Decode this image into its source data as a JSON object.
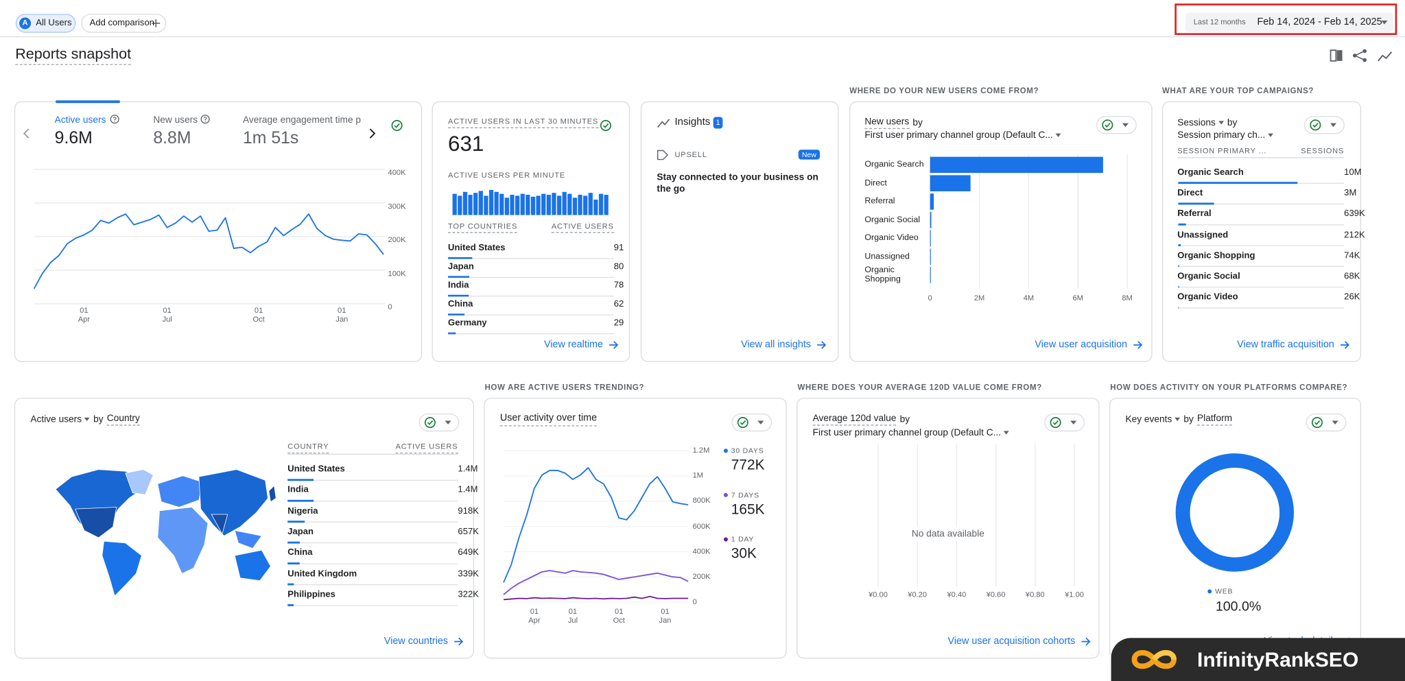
{
  "toolbar": {
    "segment_badge": "A",
    "segment": "All Users",
    "add_comparison": "Add comparison",
    "date_preset": "Last 12 months",
    "date_range": "Feb 14, 2024 - Feb 14, 2025"
  },
  "title": "Reports snapshot",
  "overview": {
    "metrics": [
      {
        "label": "Active users",
        "value": "9.6M"
      },
      {
        "label": "New users",
        "value": "8.8M"
      },
      {
        "label": "Average engagement time p",
        "value": "1m 51s"
      }
    ],
    "chart": {
      "type": "line",
      "color": "#1a73e8",
      "grid": true,
      "categories": [
        null,
        null,
        null,
        null,
        null,
        null,
        "01 Apr",
        null,
        null,
        null,
        null,
        null,
        null,
        null,
        null,
        null,
        "01 Jul",
        null,
        null,
        null,
        null,
        null,
        null,
        null,
        null,
        null,
        null,
        "01 Oct",
        null,
        null,
        null,
        null,
        null,
        null,
        null,
        null,
        null,
        "01 Jan",
        null,
        null,
        null,
        null,
        null
      ],
      "values": [
        45000,
        90000,
        123000,
        144000,
        179000,
        195000,
        205000,
        219000,
        248000,
        240000,
        256000,
        267000,
        235000,
        243000,
        251000,
        264000,
        227000,
        240000,
        261000,
        243000,
        261000,
        216000,
        219000,
        256000,
        165000,
        168000,
        152000,
        171000,
        184000,
        227000,
        203000,
        221000,
        237000,
        267000,
        224000,
        203000,
        192000,
        189000,
        187000,
        208000,
        205000,
        179000,
        147000
      ],
      "ylim": [
        0,
        400000
      ],
      "yticks": [
        0,
        {
          "value": 100000,
          "label": "100K"
        },
        {
          "value": 200000,
          "label": "200K"
        },
        {
          "value": 300000,
          "label": "300K"
        },
        {
          "value": 400000,
          "label": "400K"
        }
      ]
    }
  },
  "realtime": {
    "heading": "ACTIVE USERS IN LAST 30 MINUTES",
    "value": 631,
    "per_minute_heading": "ACTIVE USERS PER MINUTE",
    "per_minute": {
      "type": "bar",
      "color": "#1a73e8",
      "values": [
        22,
        20,
        24,
        21,
        23,
        25,
        20,
        26,
        24,
        22,
        18,
        21,
        20,
        22,
        21,
        19,
        20,
        22,
        21,
        23,
        20,
        24,
        22,
        18,
        21,
        20,
        23,
        16,
        22,
        21
      ]
    },
    "countries_header": "TOP COUNTRIES",
    "users_header": "ACTIVE USERS",
    "countries": [
      "United States",
      "Japan",
      "India",
      "China",
      "Germany"
    ],
    "users": [
      91,
      80,
      78,
      62,
      29
    ],
    "link": "View realtime"
  },
  "insights": {
    "title": "Insights",
    "count": 1,
    "tag": "UPSELL",
    "badge": "New",
    "text": "Stay connected to your business on the go",
    "link": "View all insights"
  },
  "acquisition": {
    "heading": "WHERE DO YOUR NEW USERS COME FROM?",
    "metric": "New users",
    "by": "by",
    "dimension": "First user primary channel group (Default C...",
    "chart": {
      "type": "bar",
      "orientation": "horizontal",
      "color": "#1a73e8",
      "grid": true,
      "categories": [
        "Organic Search",
        "Direct",
        "Referral",
        "Organic Social",
        "Organic Video",
        "Unassigned",
        "Organic Shopping"
      ],
      "values": [
        7020000,
        1640000,
        150000,
        50000,
        30000,
        30000,
        30000
      ],
      "xlim": [
        0,
        8000000
      ],
      "xticks": [
        0,
        {
          "value": 2000000,
          "label": "2M"
        },
        {
          "value": 4000000,
          "label": "4M"
        },
        {
          "value": 6000000,
          "label": "6M"
        },
        {
          "value": 8000000,
          "label": "8M"
        }
      ]
    },
    "link": "View user acquisition"
  },
  "campaigns": {
    "heading": "WHAT ARE YOUR TOP CAMPAIGNS?",
    "metric": "Sessions",
    "by": "by",
    "dimension": "Session primary ch...",
    "col1": "SESSION PRIMARY ...",
    "col2": "SESSIONS",
    "rows": [
      "Organic Search",
      "Direct",
      "Referral",
      "Unassigned",
      "Organic Shopping",
      "Organic Social",
      "Organic Video"
    ],
    "values": [
      10000000,
      3000000,
      639000,
      212000,
      74000,
      68000,
      26000
    ],
    "value_labels": [
      "10M",
      "3M",
      "639K",
      "212K",
      "74K",
      "68K",
      "26K"
    ],
    "color": "#1a73e8",
    "link": "View traffic acquisition"
  },
  "countries": {
    "metric": "Active users",
    "by": "by",
    "dimension": "Country",
    "col1": "COUNTRY",
    "col2": "ACTIVE USERS",
    "rows": [
      "United States",
      "India",
      "Nigeria",
      "Japan",
      "China",
      "United Kingdom",
      "Philippines"
    ],
    "values": [
      1400000,
      1400000,
      918000,
      657000,
      649000,
      339000,
      322000
    ],
    "value_labels": [
      "1.4M",
      "1.4M",
      "918K",
      "657K",
      "649K",
      "339K",
      "322K"
    ],
    "color": "#1a73e8",
    "link": "View countries"
  },
  "trend": {
    "heading": "HOW ARE ACTIVE USERS TRENDING?",
    "title": "User activity over time",
    "chart": {
      "type": "line",
      "grid": true,
      "categories": [
        null,
        null,
        null,
        null,
        "01 Apr",
        null,
        null,
        null,
        null,
        "01 Jul",
        null,
        null,
        null,
        null,
        null,
        "01 Oct",
        null,
        null,
        null,
        null,
        null,
        "01 Jan",
        null,
        null,
        null
      ],
      "series": [
        {
          "name": "30 DAYS",
          "summary": "772K",
          "color": "#1a73e8",
          "values": [
            156000,
            298000,
            511000,
            689000,
            902000,
            1008000,
            1044000,
            1044000,
            1022000,
            973000,
            1008000,
            1065000,
            973000,
            937000,
            831000,
            667000,
            653000,
            724000,
            831000,
            937000,
            994000,
            902000,
            795000,
            781000,
            772000
          ]
        },
        {
          "name": "7 DAYS",
          "summary": "165K",
          "color": "#7b4fd6",
          "values": [
            60000,
            110000,
            150000,
            180000,
            210000,
            240000,
            250000,
            240000,
            230000,
            250000,
            240000,
            235000,
            230000,
            220000,
            200000,
            180000,
            190000,
            200000,
            210000,
            220000,
            230000,
            215000,
            200000,
            195000,
            165000
          ]
        },
        {
          "name": "1 DAY",
          "summary": "30K",
          "color": "#6a1b9a",
          "values": [
            20000,
            25000,
            30000,
            28000,
            35000,
            30000,
            32000,
            30000,
            28000,
            35000,
            30000,
            28000,
            30000,
            26000,
            30000,
            28000,
            30000,
            40000,
            30000,
            45000,
            30000,
            28000,
            30000,
            30000,
            30000
          ]
        }
      ],
      "ylim": [
        0,
        1200000
      ],
      "yticks": [
        0,
        {
          "value": 200000,
          "label": "200K"
        },
        {
          "value": 400000,
          "label": "400K"
        },
        {
          "value": 600000,
          "label": "600K"
        },
        {
          "value": 800000,
          "label": "800K"
        },
        {
          "value": 1000000,
          "label": "1M"
        },
        {
          "value": 1200000,
          "label": "1.2M"
        }
      ]
    }
  },
  "value_source": {
    "heading": "WHERE DOES YOUR AVERAGE 120D VALUE COME FROM?",
    "metric": "Average 120d value",
    "by": "by",
    "dimension": "First user primary channel group (Default C...",
    "message": "No data available",
    "chart": {
      "type": "bar",
      "orientation": "horizontal",
      "grid": true,
      "xlim": [
        0,
        1
      ],
      "xticks": [
        {
          "value": 0,
          "label": "¥0.00"
        },
        {
          "value": 0.2,
          "label": "¥0.20"
        },
        {
          "value": 0.4,
          "label": "¥0.40"
        },
        {
          "value": 0.6,
          "label": "¥0.60"
        },
        {
          "value": 0.8,
          "label": "¥0.80"
        },
        {
          "value": 1,
          "label": "¥1.00"
        }
      ]
    },
    "link": "View user acquisition cohorts"
  },
  "platforms": {
    "heading": "HOW DOES ACTIVITY ON YOUR PLATFORMS COMPARE?",
    "metric": "Key events",
    "by": "by",
    "dimension": "Platform",
    "chart": {
      "type": "pie",
      "donut": true,
      "categories": [
        "WEB"
      ],
      "values": [
        100
      ],
      "value_labels": [
        "100.0%"
      ],
      "colors": [
        "#1a73e8"
      ]
    },
    "link": "View tech details"
  },
  "watermark": "InfinityRankSEO"
}
